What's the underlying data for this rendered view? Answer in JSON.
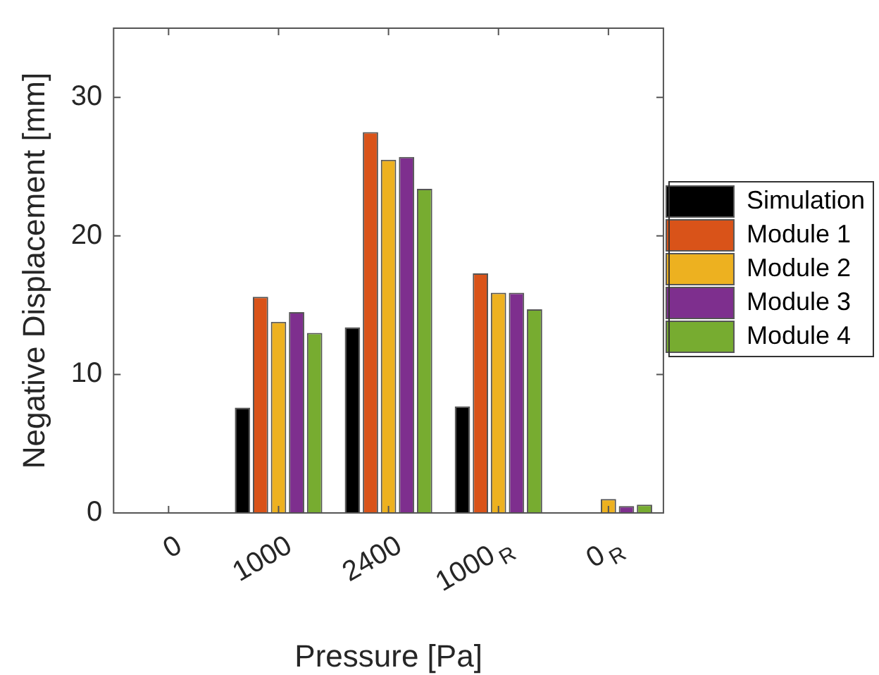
{
  "chart_data": {
    "type": "bar",
    "xlabel": "Pressure [Pa]",
    "ylabel": "Negative Displacement [mm]",
    "categories": [
      "0",
      "1000",
      "2400",
      "1000$_{R}$",
      "0$_{R}$"
    ],
    "series": [
      {
        "name": "Simulation",
        "color": "#000000",
        "values": [
          0,
          7.6,
          13.4,
          7.7,
          0
        ]
      },
      {
        "name": "Module 1",
        "color": "#d95319",
        "values": [
          0,
          15.6,
          27.5,
          17.3,
          0
        ]
      },
      {
        "name": "Module 2",
        "color": "#edb120",
        "values": [
          0,
          13.8,
          25.5,
          15.9,
          1.0
        ]
      },
      {
        "name": "Module 3",
        "color": "#7e2f8e",
        "values": [
          0,
          14.5,
          25.7,
          15.9,
          0.5
        ]
      },
      {
        "name": "Module 4",
        "color": "#77ac30",
        "values": [
          0,
          13.0,
          23.4,
          14.7,
          0.6
        ]
      }
    ],
    "ylim": [
      0,
      35
    ],
    "yticks": [
      0,
      10,
      20,
      30
    ],
    "grid": false,
    "legend": "right"
  }
}
